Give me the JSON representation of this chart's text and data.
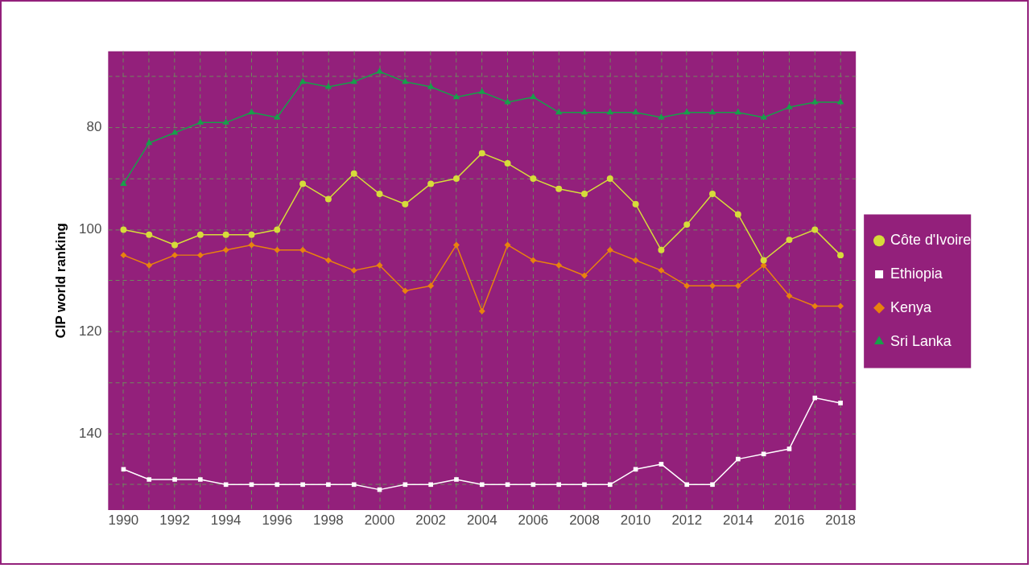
{
  "chart_data": {
    "type": "line",
    "ylabel": "CIP world ranking",
    "x": [
      1990,
      1991,
      1992,
      1993,
      1994,
      1995,
      1996,
      1997,
      1998,
      1999,
      2000,
      2001,
      2002,
      2003,
      2004,
      2005,
      2006,
      2007,
      2008,
      2009,
      2010,
      2011,
      2012,
      2013,
      2014,
      2015,
      2016,
      2017,
      2018
    ],
    "xlim": [
      1989.4,
      2018.6
    ],
    "xticks": [
      1990,
      {
        "value": 1991,
        "label": null
      },
      1992,
      {
        "value": 1993,
        "label": null
      },
      1994,
      {
        "value": 1995,
        "label": null
      },
      1996,
      {
        "value": 1997,
        "label": null
      },
      1998,
      {
        "value": 1999,
        "label": null
      },
      2000,
      {
        "value": 2001,
        "label": null
      },
      2002,
      {
        "value": 2003,
        "label": null
      },
      2004,
      {
        "value": 2005,
        "label": null
      },
      2006,
      {
        "value": 2007,
        "label": null
      },
      2008,
      {
        "value": 2009,
        "label": null
      },
      2010,
      {
        "value": 2011,
        "label": null
      },
      2012,
      {
        "value": 2013,
        "label": null
      },
      2014,
      {
        "value": 2015,
        "label": null
      },
      2016,
      {
        "value": 2017,
        "label": null
      },
      2018
    ],
    "ylim": [
      155,
      65
    ],
    "yticks": [
      {
        "value": 70,
        "label": null
      },
      80,
      {
        "value": 90,
        "label": null
      },
      100,
      {
        "value": 110,
        "label": null
      },
      120,
      {
        "value": 130,
        "label": null
      },
      140,
      {
        "value": 150,
        "label": null
      }
    ],
    "grid": true,
    "legend": "right",
    "line_style": "solid",
    "series": [
      {
        "name": "Côte d'Ivoire",
        "color": "#d6dc3a",
        "marker": "circle",
        "values": [
          100,
          101,
          103,
          101,
          101,
          101,
          100,
          91,
          94,
          89,
          93,
          95,
          91,
          90,
          85,
          87,
          90,
          92,
          93,
          90,
          95,
          104,
          99,
          93,
          97,
          106,
          102,
          100,
          105
        ]
      },
      {
        "name": "Ethiopia",
        "color": "#ffffff",
        "marker": "square",
        "values": [
          147,
          149,
          149,
          149,
          150,
          150,
          150,
          150,
          150,
          150,
          151,
          150,
          150,
          149,
          150,
          150,
          150,
          150,
          150,
          150,
          147,
          146,
          150,
          150,
          145,
          144,
          143,
          133,
          134
        ]
      },
      {
        "name": "Kenya",
        "color": "#e8820e",
        "marker": "diamond",
        "values": [
          105,
          107,
          105,
          105,
          104,
          103,
          104,
          104,
          106,
          108,
          107,
          112,
          111,
          103,
          116,
          103,
          106,
          107,
          109,
          104,
          106,
          108,
          111,
          111,
          111,
          107,
          113,
          115,
          115
        ]
      },
      {
        "name": "Sri Lanka",
        "color": "#17a04a",
        "marker": "triangle",
        "values": [
          91,
          83,
          81,
          79,
          79,
          77,
          78,
          71,
          72,
          71,
          69,
          71,
          72,
          74,
          73,
          75,
          74,
          77,
          77,
          77,
          77,
          78,
          77,
          77,
          77,
          78,
          76,
          75,
          75
        ]
      }
    ]
  }
}
